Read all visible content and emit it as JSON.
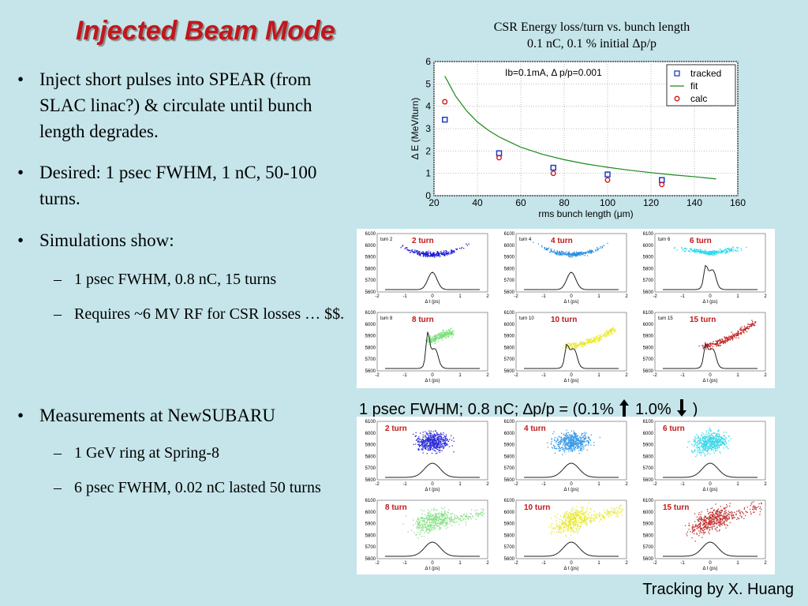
{
  "title": "Injected Beam Mode",
  "bullets": [
    {
      "text": "Inject short pulses into SPEAR (from SLAC linac?) & circulate until bunch length degrades."
    },
    {
      "text": "Desired: 1 psec FWHM, 1 nC, 50-100 turns."
    },
    {
      "text": "Simulations show:",
      "sub": [
        "1 psec FWHM, 0.8 nC, 15 turns",
        "Requires ~6 MV RF for CSR losses … $$."
      ]
    },
    {
      "text": "Measurements at NewSUBARU",
      "sub": [
        "1 GeV ring at Spring-8",
        "6 psec FWHM, 0.02 nC lasted 50 turns"
      ]
    }
  ],
  "bullet_symbol": "•",
  "sub_symbol": "–",
  "chart_title_line1": "CSR Energy loss/turn vs. bunch length",
  "chart_title_line2": "0.1 nC, 0.1 % initial Δp/p",
  "chart_data": {
    "type": "scatter",
    "annotation": "Ib=0.1mA, Δ p/p=0.001",
    "xlabel": "rms bunch length (μm)",
    "ylabel": "Δ E (MeV/turn)",
    "xlim": [
      20,
      160
    ],
    "ylim": [
      0,
      6
    ],
    "xticks": [
      "20",
      "40",
      "60",
      "80",
      "100",
      "120",
      "140",
      "160"
    ],
    "yticks": [
      "0",
      "1",
      "2",
      "3",
      "4",
      "5",
      "6"
    ],
    "legend_position": "top-right",
    "series": [
      {
        "name": "tracked",
        "marker": "square",
        "color": "#1f3fbf",
        "x": [
          25,
          50,
          75,
          100,
          125
        ],
        "y": [
          3.4,
          1.9,
          1.25,
          0.95,
          0.7
        ]
      },
      {
        "name": "fit",
        "marker": "line",
        "color": "#1a8a1a",
        "x": [
          25,
          30,
          35,
          40,
          45,
          50,
          60,
          70,
          80,
          90,
          100,
          110,
          120,
          130,
          140,
          150
        ],
        "y": [
          5.35,
          4.45,
          3.8,
          3.3,
          2.93,
          2.63,
          2.17,
          1.85,
          1.61,
          1.42,
          1.27,
          1.14,
          1.03,
          0.93,
          0.85,
          0.75
        ]
      },
      {
        "name": "calc",
        "marker": "circle",
        "color": "#cc1111",
        "x": [
          25,
          50,
          75,
          100,
          125
        ],
        "y": [
          4.2,
          1.7,
          1.0,
          0.7,
          0.5
        ]
      }
    ]
  },
  "sim_panel": {
    "labels": [
      "2 turn",
      "4 turn",
      "6 turn",
      "8 turn",
      "10 turn",
      "15 turn"
    ],
    "small_labels": [
      "turn 2",
      "turn 4",
      "turn 6",
      "turn 8",
      "turn 10",
      "turn 15"
    ],
    "colors": [
      "#1a1ad8",
      "#2a8fe0",
      "#2ad8e8",
      "#7de07d",
      "#e8e820",
      "#c02020"
    ],
    "yticks": [
      "6100",
      "6000",
      "5900",
      "5800",
      "5700",
      "5600"
    ],
    "xticks": [
      "-2",
      "-1",
      "0",
      "1",
      "2"
    ],
    "xlabel": "Δ t (ps)"
  },
  "meas_panel": {
    "labels": [
      "2 turn",
      "4 turn",
      "6 turn",
      "8 turn",
      "10 turn",
      "15 turn"
    ],
    "colors": [
      "#2a2ad8",
      "#3a9ae8",
      "#38d8e8",
      "#88e088",
      "#e8e830",
      "#c03030"
    ],
    "yticks": [
      "6100",
      "6000",
      "5900",
      "5800",
      "5700",
      "5600"
    ],
    "xticks": [
      "-2",
      "-1",
      "0",
      "1",
      "2"
    ],
    "xlabel": "Δ t (ps)"
  },
  "caption_left": "1 psec FWHM; 0.8 nC; ∆p/p = (0.1%",
  "caption_mid": "1.0%",
  "caption_right": ")",
  "credit": "Tracking by X. Huang"
}
